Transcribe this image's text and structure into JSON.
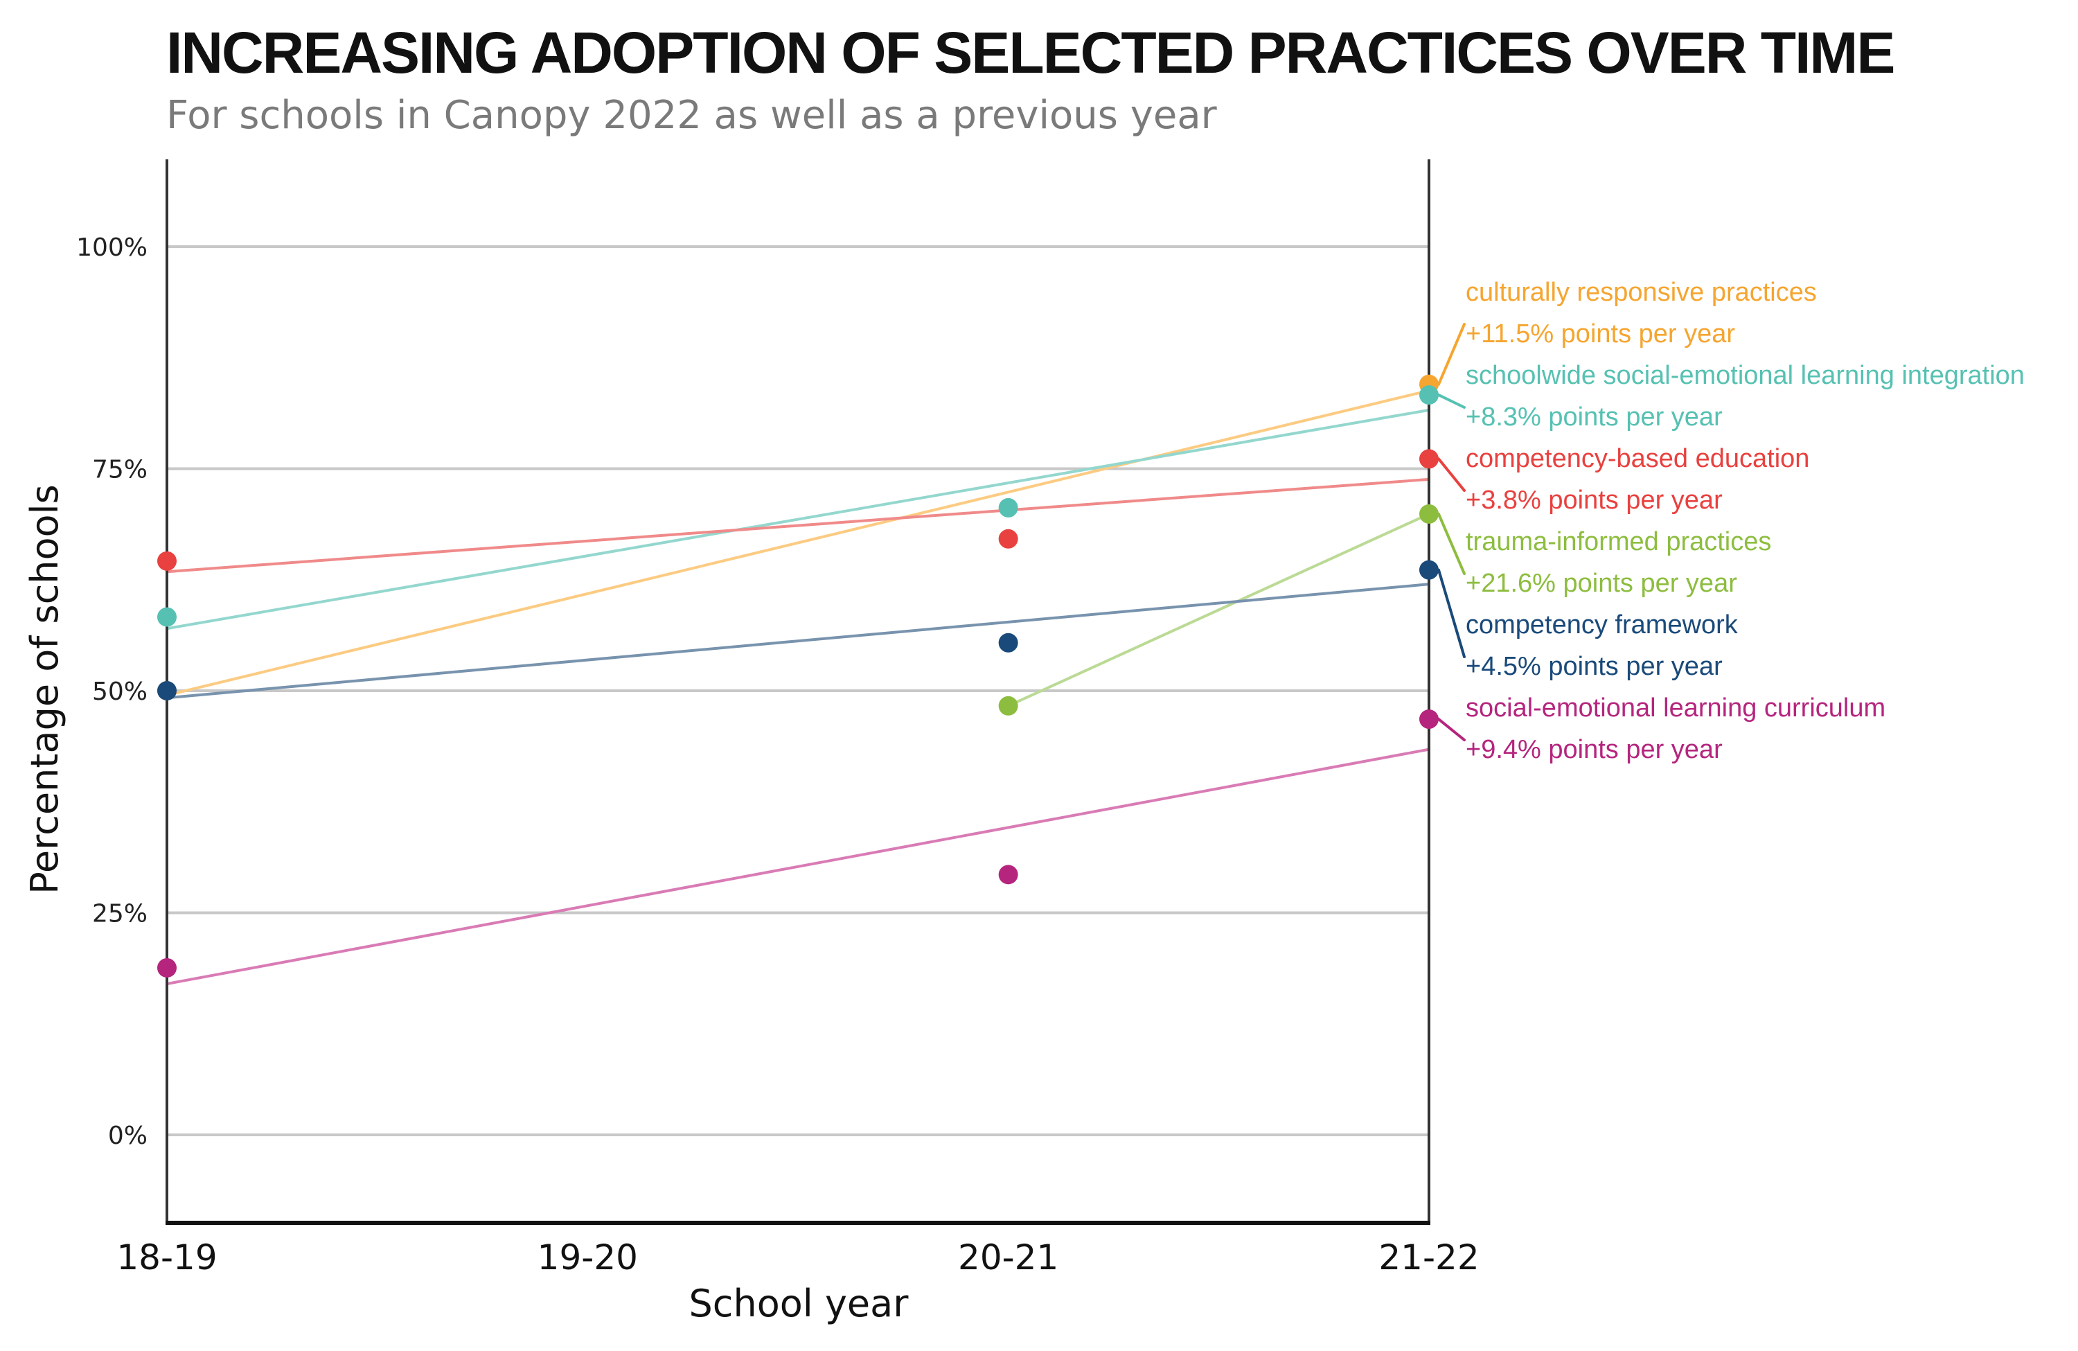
{
  "chart_data": {
    "type": "scatter",
    "title": "INCREASING ADOPTION OF SELECTED PRACTICES OVER TIME",
    "subtitle": "For schools in Canopy 2022 as well as a previous year",
    "xlabel": "School year",
    "ylabel": "Percentage of schools",
    "categories": [
      "18-19",
      "19-20",
      "20-21",
      "21-22"
    ],
    "ylim": [
      -0.1,
      1.1
    ],
    "yticks": [
      {
        "value": 0,
        "label": "0%"
      },
      {
        "value": 0.25,
        "label": "25%"
      },
      {
        "value": 0.5,
        "label": "50%"
      },
      {
        "value": 0.75,
        "label": "75%"
      },
      {
        "value": 1,
        "label": "100%"
      }
    ],
    "grid": true,
    "trend_lines": true,
    "series": [
      {
        "name": "culturally responsive practices",
        "annotation": "+11.5% points per year",
        "color": "#F5A530",
        "line_color": "#FCCB82",
        "points": [
          {
            "x": 0,
            "y": 0.5
          },
          {
            "x": 3,
            "y": 0.845
          }
        ],
        "trend": [
          {
            "x": 0,
            "y": 0.495
          },
          {
            "x": 3,
            "y": 0.838
          }
        ]
      },
      {
        "name": "schoolwide social-emotional learning integration",
        "annotation": "+8.3% points per year",
        "color": "#56C1B2",
        "line_color": "#93D7CE",
        "points": [
          {
            "x": 0,
            "y": 0.583
          },
          {
            "x": 2,
            "y": 0.706
          },
          {
            "x": 3,
            "y": 0.833
          }
        ],
        "trend": [
          {
            "x": 0,
            "y": 0.57
          },
          {
            "x": 3,
            "y": 0.816
          }
        ]
      },
      {
        "name": "competency-based education",
        "annotation": "+3.8% points per year",
        "color": "#E8413F",
        "line_color": "#F08A8A",
        "points": [
          {
            "x": 0,
            "y": 0.646
          },
          {
            "x": 2,
            "y": 0.671
          },
          {
            "x": 3,
            "y": 0.761
          }
        ],
        "trend": [
          {
            "x": 0,
            "y": 0.634
          },
          {
            "x": 3,
            "y": 0.738
          }
        ]
      },
      {
        "name": "trauma-informed practices",
        "annotation": "+21.6% points per year",
        "color": "#8DBD3F",
        "line_color": "#BBDA95",
        "points": [
          {
            "x": 2,
            "y": 0.483
          },
          {
            "x": 3,
            "y": 0.699
          }
        ],
        "trend": [
          {
            "x": 2,
            "y": 0.483
          },
          {
            "x": 3,
            "y": 0.699
          }
        ]
      },
      {
        "name": "competency framework",
        "annotation": "+4.5% points per year",
        "color": "#1A4A7A",
        "line_color": "#7893AD",
        "points": [
          {
            "x": 0,
            "y": 0.5
          },
          {
            "x": 2,
            "y": 0.554
          },
          {
            "x": 3,
            "y": 0.636
          }
        ],
        "trend": [
          {
            "x": 0,
            "y": 0.492
          },
          {
            "x": 3,
            "y": 0.62
          }
        ]
      },
      {
        "name": "social-emotional learning curriculum",
        "annotation": "+9.4% points per year",
        "color": "#B5257E",
        "line_color": "#D97BB5",
        "points": [
          {
            "x": 0,
            "y": 0.188
          },
          {
            "x": 2,
            "y": 0.293
          },
          {
            "x": 3,
            "y": 0.468
          }
        ],
        "trend": [
          {
            "x": 0,
            "y": 0.17
          },
          {
            "x": 3,
            "y": 0.434
          }
        ]
      }
    ]
  }
}
